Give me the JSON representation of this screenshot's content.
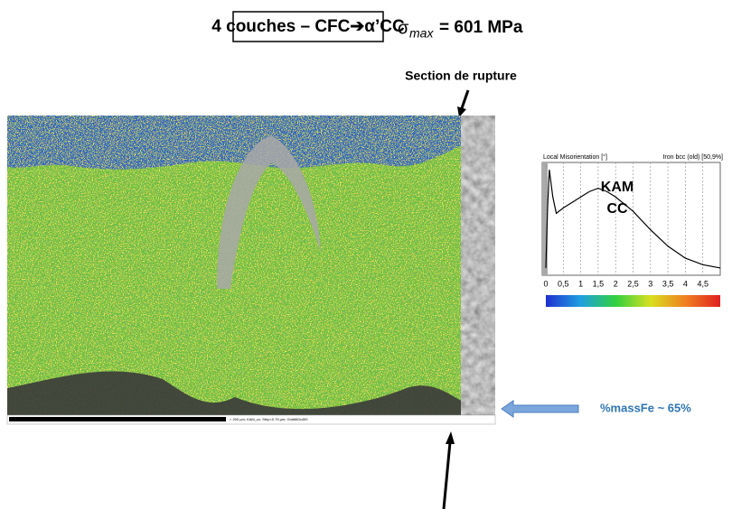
{
  "header": {
    "title": "4 couches – CFC➔α’CC",
    "stress_symbol": "σ",
    "stress_subscript": "max",
    "stress_text": "= 601 MPa"
  },
  "annotations": {
    "rupture": "Section de rupture",
    "composition": "%massFe ~ 65%",
    "scale_bar": "= 200 µm; KAM_cc; Step=0.75 µm; Grid660x400"
  },
  "inset_chart": {
    "type": "line",
    "title": "Local Misorientation [°]",
    "subtitle": "Iron bcc (old) [50,9%]",
    "labels": [
      "KAM",
      "CC"
    ],
    "color": "#000000",
    "x": [
      0,
      0.05,
      0.1,
      0.2,
      0.3,
      0.5,
      0.75,
      1,
      1.25,
      1.5,
      1.75,
      2,
      2.5,
      3,
      3.5,
      4,
      4.5,
      5
    ],
    "values": [
      0.05,
      0.6,
      0.95,
      0.7,
      0.55,
      0.6,
      0.65,
      0.7,
      0.75,
      0.78,
      0.75,
      0.7,
      0.57,
      0.4,
      0.25,
      0.14,
      0.08,
      0.05
    ],
    "xlim": [
      0,
      5
    ],
    "ylim": [
      0,
      1
    ],
    "xticks": [
      0,
      {
        "value": 0.5,
        "label": "0,5"
      },
      1,
      {
        "value": 1.5,
        "label": "1,5"
      },
      2,
      {
        "value": 2.5,
        "label": "2,5"
      },
      3,
      {
        "value": 3.5,
        "label": "3,5"
      },
      4,
      {
        "value": 4.5,
        "label": "4,5"
      }
    ],
    "grid": true
  }
}
